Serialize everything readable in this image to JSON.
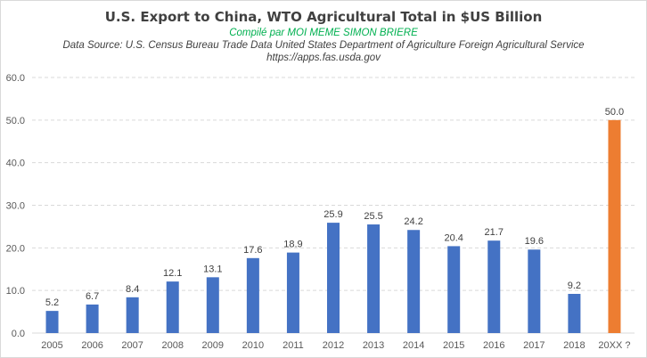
{
  "chart_data": {
    "type": "bar",
    "title": "U.S. Export to China, WTO Agricultural Total in $US Billion",
    "subtitle_credit": "Compilé par MOI MEME SIMON BRIERE",
    "subtitle_source": "Data Source: U.S. Census Bureau Trade Data  United States Department of Agriculture Foreign Agricultural Service",
    "subtitle_url": "https://apps.fas.usda.gov",
    "xlabel": "",
    "ylabel": "",
    "ylim": [
      0,
      60
    ],
    "yticks": [
      "0.0",
      "10.0",
      "20.0",
      "30.0",
      "40.0",
      "50.0",
      "60.0"
    ],
    "ytick_values": [
      0,
      10,
      20,
      30,
      40,
      50,
      60
    ],
    "grid": true,
    "grid_style": "dashed",
    "legend": "none",
    "categories": [
      "2005",
      "2006",
      "2007",
      "2008",
      "2009",
      "2010",
      "2011",
      "2012",
      "2013",
      "2014",
      "2015",
      "2016",
      "2017",
      "2018",
      "20XX ?"
    ],
    "values": [
      5.2,
      6.7,
      8.4,
      12.1,
      13.1,
      17.6,
      18.9,
      25.9,
      25.5,
      24.2,
      20.4,
      21.7,
      19.6,
      9.2,
      50.0
    ],
    "data_labels": [
      "5.2",
      "6.7",
      "8.4",
      "12.1",
      "13.1",
      "17.6",
      "18.9",
      "25.9",
      "25.5",
      "24.2",
      "20.4",
      "21.7",
      "19.6",
      "9.2",
      "50.0"
    ],
    "colors": {
      "bar": "#4472c4",
      "highlight_bar": "#ed7d31",
      "credit_text": "#00b050",
      "grid": "#d9d9d9",
      "axis": "#d9d9d9"
    },
    "highlight_index": 14
  }
}
